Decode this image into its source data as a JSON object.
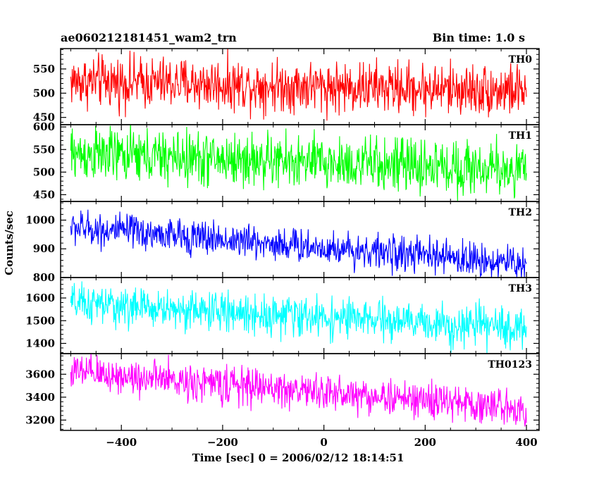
{
  "header": {
    "left_title": "ae060212181451_wam2_trn",
    "right_title": "Bin time: 1.0 s"
  },
  "chart_data": {
    "type": "line",
    "xlabel": "Time [sec] 0 = 2006/02/12 18:14:51",
    "ylabel": "Counts/sec",
    "xlim": [
      -520,
      425
    ],
    "x_ticks": [
      -400,
      -200,
      0,
      200,
      400
    ],
    "x_tick_labels": [
      "−400",
      "−200",
      "0",
      "200",
      "400"
    ],
    "x_data_range": [
      -500,
      400
    ],
    "bin_time_s": 1.0,
    "panels": [
      {
        "name": "TH0",
        "color": "#ff0000",
        "ylim": [
          435,
          592
        ],
        "y_ticks": [
          450,
          500,
          550
        ],
        "y_tick_labels": [
          "450",
          "500",
          "550"
        ],
        "trend": {
          "start": 525,
          "end": 505
        },
        "noise_amplitude": 40
      },
      {
        "name": "TH1",
        "color": "#00ff00",
        "ylim": [
          435,
          605
        ],
        "y_ticks": [
          450,
          500,
          550,
          600
        ],
        "y_tick_labels": [
          "450",
          "500",
          "550",
          "600"
        ],
        "trend": {
          "start": 540,
          "end": 505
        },
        "noise_amplitude": 45
      },
      {
        "name": "TH2",
        "color": "#0000ff",
        "ylim": [
          800,
          1065
        ],
        "y_ticks": [
          800,
          900,
          1000
        ],
        "y_tick_labels": [
          "800",
          "900",
          "1000"
        ],
        "trend": {
          "start": 975,
          "end": 848
        },
        "noise_amplitude": 45
      },
      {
        "name": "TH3",
        "color": "#00ffff",
        "ylim": [
          1355,
          1690
        ],
        "y_ticks": [
          1400,
          1500,
          1600
        ],
        "y_tick_labels": [
          "1400",
          "1500",
          "1600"
        ],
        "trend": {
          "start": 1575,
          "end": 1465
        },
        "noise_amplitude": 65
      },
      {
        "name": "TH0123",
        "color": "#ff00ff",
        "ylim": [
          3110,
          3780
        ],
        "y_ticks": [
          3200,
          3400,
          3600
        ],
        "y_tick_labels": [
          "3200",
          "3400",
          "3600"
        ],
        "trend": {
          "start": 3620,
          "end": 3300
        },
        "noise_amplitude": 120
      }
    ]
  }
}
